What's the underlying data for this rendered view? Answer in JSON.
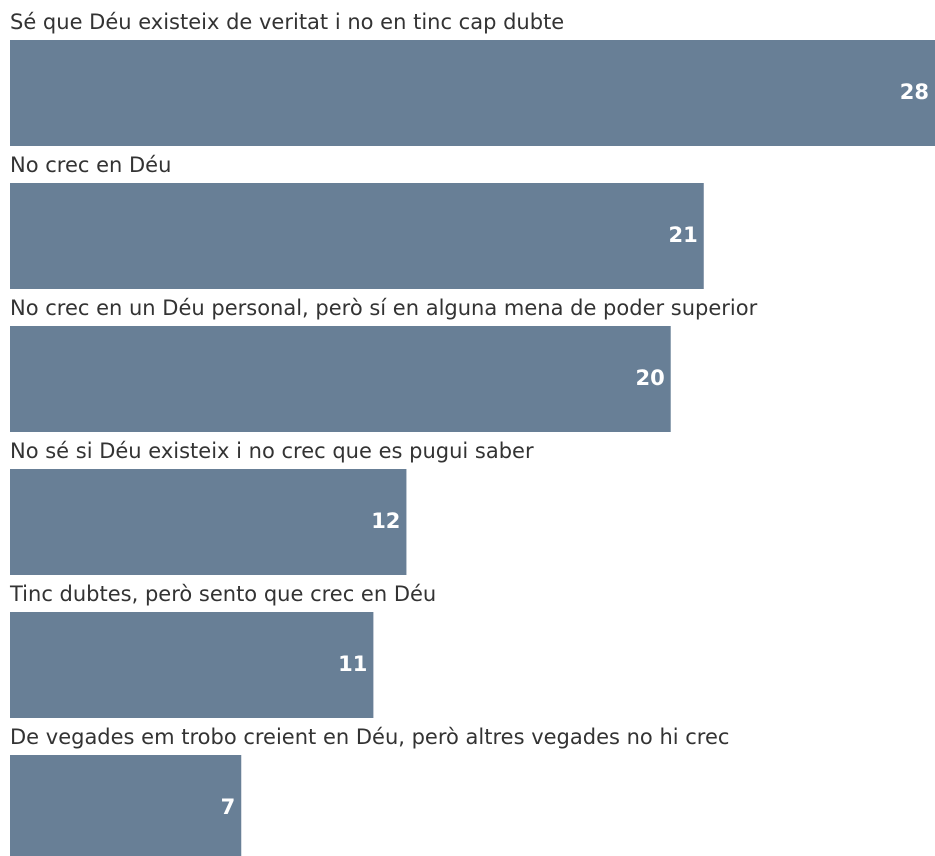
{
  "chart_data": {
    "type": "bar",
    "orientation": "horizontal",
    "categories": [
      "Sé que Déu existeix de veritat i no en tinc cap dubte",
      "No crec en Déu",
      "No crec en un Déu personal, però sí en alguna mena de poder superior",
      "No sé si Déu existeix i no crec que es pugui saber",
      "Tinc dubtes, però sento que crec en Déu",
      "De vegades em trobo creient en Déu, però altres vegades no hi crec"
    ],
    "values": [
      28,
      21,
      20,
      12,
      11,
      7
    ],
    "color": "#687f96"
  }
}
